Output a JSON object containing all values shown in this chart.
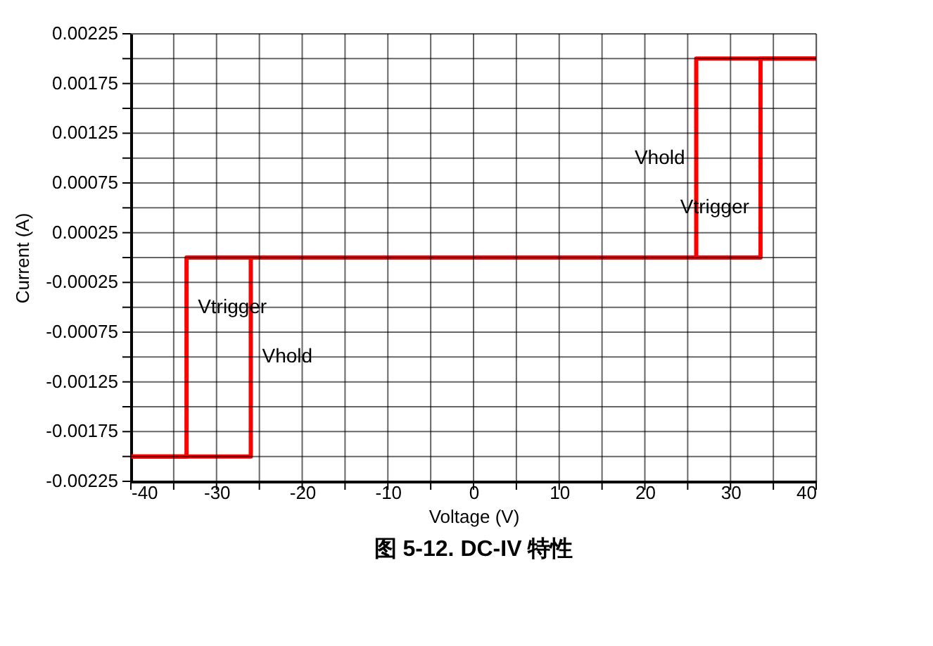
{
  "chart_data": {
    "type": "line",
    "title": "图 5-12. DC-IV 特性",
    "xlabel": "Voltage (V)",
    "ylabel": "Current (A)",
    "series": [
      {
        "color": "#ff0000",
        "x": [
          -40,
          -33.5,
          -33.5,
          33.5,
          33.5,
          40
        ],
        "values": [
          -0.002,
          -0.002,
          0,
          0,
          0.002,
          0.002
        ]
      },
      {
        "color": "#ff0000",
        "x": [
          -40,
          -26,
          -26,
          26,
          26,
          40
        ],
        "values": [
          -0.002,
          -0.002,
          0,
          0,
          0.002,
          0.002
        ]
      }
    ],
    "xlim": [
      -40,
      40
    ],
    "xticks": [
      -40,
      {
        "value": -35,
        "label": null
      },
      -30,
      {
        "value": -25,
        "label": null
      },
      -20,
      {
        "value": -15,
        "label": null
      },
      -10,
      {
        "value": -5,
        "label": null
      },
      0,
      {
        "value": 5,
        "label": null
      },
      10,
      {
        "value": 15,
        "label": null
      },
      20,
      {
        "value": 25,
        "label": null
      },
      30,
      {
        "value": 35,
        "label": null
      },
      40
    ],
    "ylim": [
      -0.00225,
      0.00225
    ],
    "yticks": [
      -0.00225,
      {
        "value": -0.002,
        "label": null
      },
      -0.00175,
      {
        "value": -0.0015,
        "label": null
      },
      -0.00125,
      {
        "value": -0.001,
        "label": null
      },
      -0.00075,
      {
        "value": -0.0005,
        "label": null
      },
      -0.00025,
      {
        "value": 0,
        "label": null
      },
      0.00025,
      {
        "value": 0.0005,
        "label": null
      },
      0.00075,
      {
        "value": 0.001,
        "label": null
      },
      0.00125,
      {
        "value": 0.0015,
        "label": null
      },
      0.00175,
      {
        "value": 0.002,
        "label": null
      },
      0.00225
    ],
    "annotations": [
      {
        "text": "Vhold",
        "x": 26,
        "y": 0.001
      },
      {
        "text": "Vtrigger",
        "x": 33.5,
        "y": 0.0005
      },
      {
        "text": "Vtrigger",
        "x": -33.5,
        "y": -0.0005
      },
      {
        "text": "Vhold",
        "x": -26,
        "y": -0.001
      }
    ],
    "grid": true,
    "line_style": "solid",
    "marker": "none"
  }
}
